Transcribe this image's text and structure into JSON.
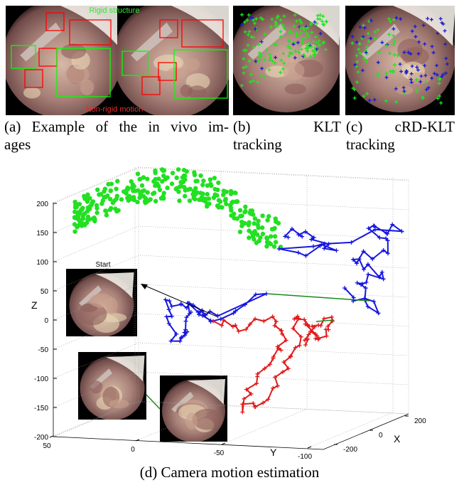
{
  "panels": [
    {
      "overlay_top": "Rigid structure",
      "overlay_bottom": "Non-rigid motion",
      "caption_lines": [
        "(a) Example of the in vivo im-",
        "ages"
      ]
    },
    {
      "caption_lines": [
        "(b) KLT",
        "tracking"
      ]
    },
    {
      "caption_lines": [
        "(c) cRD-KLT",
        "tracking"
      ]
    }
  ],
  "plot": {
    "start_label": "Start",
    "z_label": "Z",
    "y_label": "Y",
    "x_label": "X",
    "zticks": [
      200,
      150,
      100,
      50,
      0,
      -50,
      -100,
      -150,
      -200
    ],
    "yticks": [
      50,
      0,
      -50,
      -100
    ],
    "xticks": [
      200,
      0,
      -200
    ],
    "caption": "(d) Camera motion estimation"
  }
}
